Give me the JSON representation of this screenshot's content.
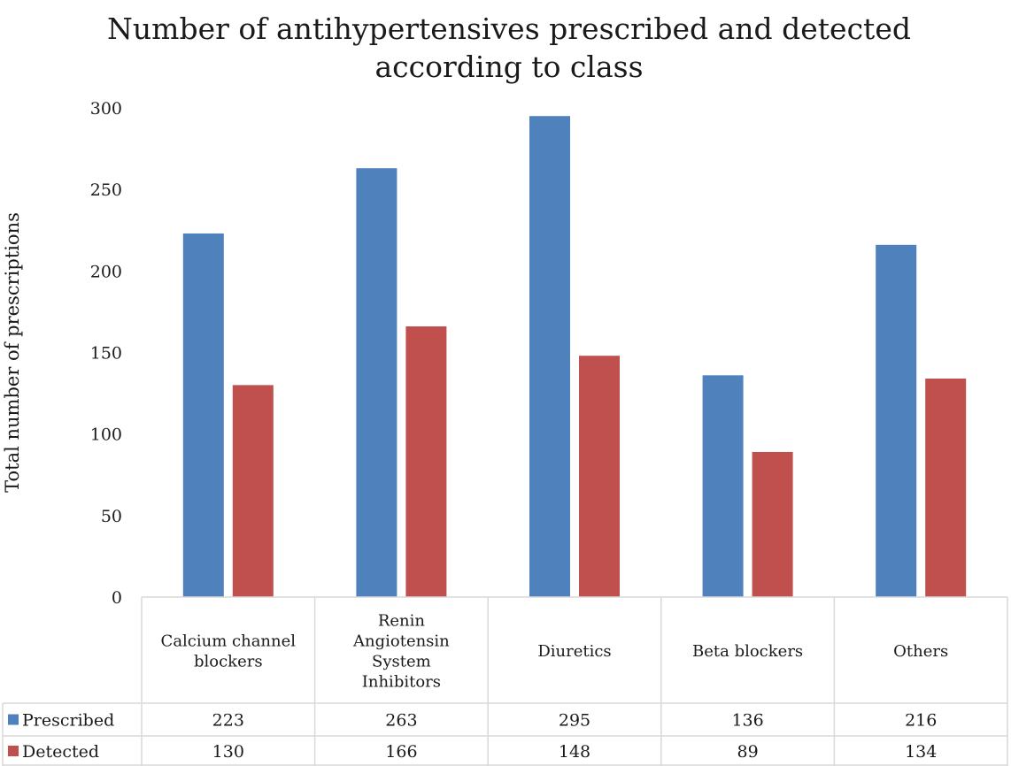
{
  "chart_data": {
    "type": "bar",
    "title_lines": [
      "Number of antihypertensives prescribed and detected",
      "according to class"
    ],
    "ylabel": "Total number of prescriptions",
    "xlabel": "",
    "ylim": [
      0,
      300
    ],
    "yticks": [
      "0",
      "50",
      "100",
      "150",
      "200",
      "250",
      "300"
    ],
    "grid": false,
    "legend": "data-table",
    "categories": [
      [
        "Calcium channel",
        "blockers"
      ],
      [
        "Renin",
        "Angiotensin",
        "System",
        "Inhibitors"
      ],
      [
        "Diuretics"
      ],
      [
        "Beta blockers"
      ],
      [
        "Others"
      ]
    ],
    "series": [
      {
        "name": "Prescribed",
        "color": "#4F81BD",
        "values": [
          223,
          263,
          295,
          136,
          216
        ]
      },
      {
        "name": "Detected",
        "color": "#C0504D",
        "values": [
          130,
          166,
          148,
          89,
          134
        ]
      }
    ]
  }
}
